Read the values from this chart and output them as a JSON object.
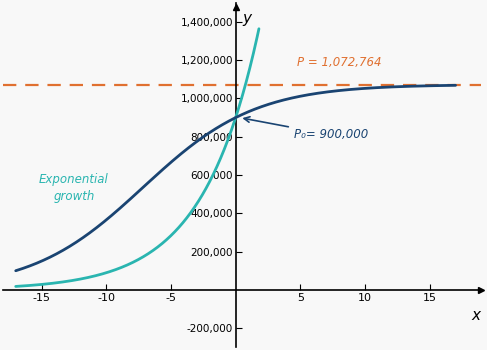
{
  "P0": 900000,
  "K": 1072764,
  "r": 0.2311,
  "x_min": -18,
  "x_max": 19,
  "y_min": -300000,
  "y_max": 1500000,
  "x_ticks": [
    -15,
    -10,
    -5,
    0,
    5,
    10,
    15
  ],
  "y_ticks": [
    -200000,
    200000,
    400000,
    600000,
    800000,
    1000000,
    1200000,
    1400000
  ],
  "exp_color": "#2ab5b0",
  "logistic_color": "#1a4472",
  "dashed_color": "#e07030",
  "bg_color": "#f8f8f8",
  "label_exp": "Exponential\ngrowth",
  "label_P": "P = 1,072,764",
  "label_P0": "P₀= 900,000",
  "title_x": "x",
  "title_y": "y",
  "x_exp_start": -17,
  "x_exp_end": 1.8,
  "x_log_start": -17,
  "x_log_end": 17
}
